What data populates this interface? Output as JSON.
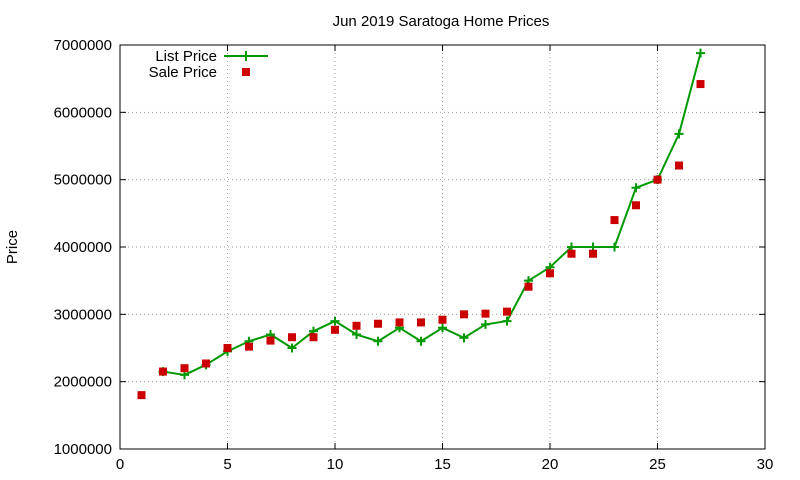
{
  "chart_data": {
    "type": "line",
    "title": "Jun 2019 Saratoga Home Prices",
    "xlabel": "",
    "ylabel": "Price",
    "xlim": [
      0,
      30
    ],
    "ylim": [
      1000000,
      7000000
    ],
    "xticks": [
      0,
      5,
      10,
      15,
      20,
      25,
      30
    ],
    "yticks": [
      1000000,
      2000000,
      3000000,
      4000000,
      5000000,
      6000000,
      7000000
    ],
    "xtick_labels": [
      "0",
      "5",
      "10",
      "15",
      "20",
      "25",
      "30"
    ],
    "ytick_labels": [
      "1000000",
      "2000000",
      "3000000",
      "4000000",
      "5000000",
      "6000000",
      "7000000"
    ],
    "grid": true,
    "legend_position": "top-left",
    "series": [
      {
        "name": "List Price",
        "style": "line-with-plus-markers",
        "color": "#009900",
        "x": [
          2,
          3,
          4,
          5,
          6,
          7,
          8,
          9,
          10,
          11,
          12,
          13,
          14,
          15,
          16,
          17,
          18,
          19,
          20,
          21,
          22,
          23,
          24,
          25,
          26,
          27
        ],
        "y": [
          2150000,
          2100000,
          2250000,
          2450000,
          2600000,
          2700000,
          2500000,
          2750000,
          2900000,
          2700000,
          2600000,
          2800000,
          2600000,
          2800000,
          2650000,
          2850000,
          2900000,
          3500000,
          3700000,
          4000000,
          4000000,
          4000000,
          4880000,
          5000000,
          5680000,
          6880000
        ]
      },
      {
        "name": "Sale Price",
        "style": "square-markers",
        "color": "#cc0000",
        "x": [
          1,
          2,
          3,
          4,
          5,
          6,
          7,
          8,
          9,
          10,
          11,
          12,
          13,
          14,
          15,
          16,
          17,
          18,
          19,
          20,
          21,
          22,
          23,
          24,
          25,
          26,
          27
        ],
        "y": [
          1800000,
          2150000,
          2200000,
          2270000,
          2500000,
          2520000,
          2610000,
          2660000,
          2660000,
          2770000,
          2830000,
          2860000,
          2880000,
          2880000,
          2920000,
          3000000,
          3010000,
          3040000,
          3410000,
          3610000,
          3900000,
          3900000,
          4400000,
          4620000,
          5000000,
          5210000,
          6420000
        ]
      }
    ]
  }
}
